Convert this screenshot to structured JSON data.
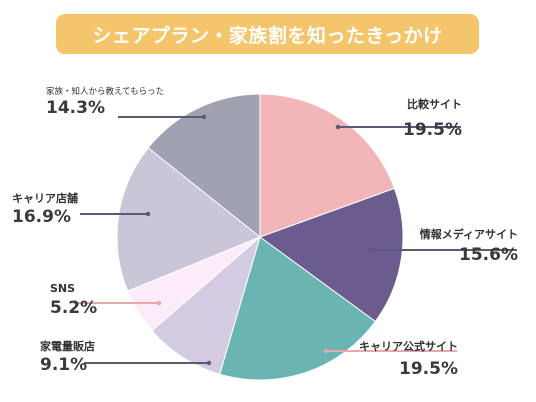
{
  "title": "シェアプラン・家族割を知ったきっかけ",
  "chart_data": {
    "type": "pie",
    "title": "シェアプラン・家族割を知ったきっかけ",
    "slices": [
      {
        "label": "比較サイト",
        "value": 19.5,
        "pct_text": "19.5%",
        "color": "#f2b5b8",
        "line_color": "#5a5a7a"
      },
      {
        "label": "情報メディアサイト",
        "value": 15.6,
        "pct_text": "15.6%",
        "color": "#6b5b8e",
        "line_color": "#5a5a7a"
      },
      {
        "label": "キャリア公式サイト",
        "value": 19.5,
        "pct_text": "19.5%",
        "color": "#6ab5b2",
        "line_color": "#e8a8ac"
      },
      {
        "label": "家電量販店",
        "value": 9.1,
        "pct_text": "9.1%",
        "color": "#d3cbe2",
        "line_color": "#5a5a7a"
      },
      {
        "label": "SNS",
        "value": 5.2,
        "pct_text": "5.2%",
        "color": "#fcebf8",
        "line_color": "#e8a8ac"
      },
      {
        "label": "キャリア店舗",
        "value": 16.9,
        "pct_text": "16.9%",
        "color": "#cbc5d8",
        "line_color": "#5a5a7a"
      },
      {
        "label": "家族・知人から教えてもらった",
        "value": 14.3,
        "pct_text": "14.3%",
        "color": "#a0a1b1",
        "line_color": "#5a5a7a"
      }
    ]
  }
}
